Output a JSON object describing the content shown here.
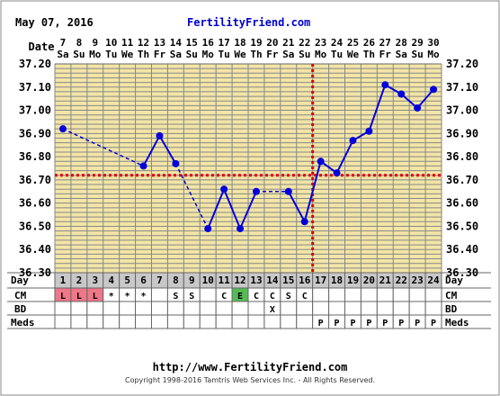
{
  "header": {
    "date": "May 07, 2016",
    "site": "FertilityFriend.com"
  },
  "footer": {
    "url": "http://www.FertilityFriend.com",
    "copyright": "Copyright 1998-2016 Tamtris Web Services Inc. - All Rights Reserved."
  },
  "colors": {
    "chart_bg": "#f2e5a6",
    "grid": "#888888",
    "line": "#0000dd",
    "marker": "#dd0000",
    "row_gray": "#c8c8c8",
    "cm_pink": "#ee7788",
    "cm_green": "#55bb55",
    "site_title": "#0000cc"
  },
  "chart_data": {
    "type": "line",
    "row_labels": {
      "date": "Date",
      "day": "Day",
      "cm": "CM",
      "bd": "BD",
      "meds": "Meds"
    },
    "dates": [
      "7",
      "8",
      "9",
      "10",
      "11",
      "12",
      "13",
      "14",
      "15",
      "16",
      "17",
      "18",
      "19",
      "20",
      "21",
      "22",
      "23",
      "24",
      "25",
      "26",
      "27",
      "28",
      "29",
      "30"
    ],
    "weekdays": [
      "Sa",
      "Su",
      "Mo",
      "Tu",
      "We",
      "Th",
      "Fr",
      "Sa",
      "Su",
      "Mo",
      "Tu",
      "We",
      "Th",
      "Fr",
      "Sa",
      "Su",
      "Mo",
      "Tu",
      "We",
      "Th",
      "Fr",
      "Sa",
      "Su",
      "Mo"
    ],
    "cycle_days": [
      "1",
      "2",
      "3",
      "4",
      "5",
      "6",
      "7",
      "8",
      "9",
      "10",
      "11",
      "12",
      "13",
      "14",
      "15",
      "16",
      "17",
      "18",
      "19",
      "20",
      "21",
      "22",
      "23",
      "24"
    ],
    "y_ticks": [
      "37.20",
      "37.10",
      "37.00",
      "36.90",
      "36.80",
      "36.70",
      "36.60",
      "36.50",
      "36.40",
      "36.30"
    ],
    "ylim": [
      36.3,
      37.2
    ],
    "temperatures": [
      36.92,
      null,
      null,
      null,
      null,
      36.76,
      36.89,
      36.77,
      null,
      36.49,
      36.66,
      36.49,
      36.65,
      null,
      36.65,
      36.52,
      36.78,
      36.73,
      36.87,
      36.91,
      37.11,
      37.07,
      37.01,
      37.09
    ],
    "coverline": 36.72,
    "ovulation_day": 16,
    "cm": [
      "L",
      "L",
      "L",
      "*",
      "*",
      "*",
      "",
      "S",
      "S",
      "",
      "C",
      "E",
      "C",
      "C",
      "S",
      "C",
      "",
      "",
      "",
      "",
      "",
      "",
      "",
      ""
    ],
    "bd": [
      "",
      "",
      "",
      "",
      "",
      "",
      "",
      "",
      "",
      "",
      "",
      "",
      "",
      "X",
      "",
      "",
      "",
      "",
      "",
      "",
      "",
      "",
      "",
      ""
    ],
    "meds": [
      "",
      "",
      "",
      "",
      "",
      "",
      "",
      "",
      "",
      "",
      "",
      "",
      "",
      "",
      "",
      "",
      "P",
      "P",
      "P",
      "P",
      "P",
      "P",
      "P",
      "P"
    ]
  }
}
